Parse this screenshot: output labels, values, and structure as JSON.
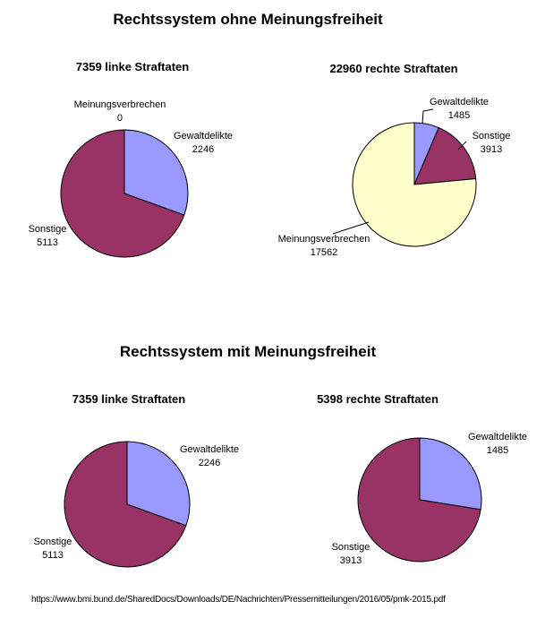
{
  "page": {
    "background": "#FFFFFF",
    "source_url": "https://www.bmi.bund.de/SharedDocs/Downloads/DE/Nachrichten/Pressemitteilungen/2016/05/pmk-2015.pdf"
  },
  "palette": {
    "gewaltdelikte": "#9999FF",
    "sonstige": "#993366",
    "meinungsverbrechen": "#FFFFCC",
    "outline": "#000000",
    "text": "#000000"
  },
  "sections": [
    {
      "title": "Rechtssystem ohne Meinungsfreiheit"
    },
    {
      "title": "Rechtssystem mit Meinungsfreiheit"
    }
  ],
  "chart_data": [
    {
      "type": "pie",
      "section": "Rechtssystem ohne Meinungsfreiheit",
      "title": "7359 linke Straftaten",
      "total": 7359,
      "start_angle_deg": 0,
      "direction": "clockwise",
      "slices": [
        {
          "label": "Meinungsverbrechen",
          "value": 0,
          "color": "#FFFFCC"
        },
        {
          "label": "Gewaltdelikte",
          "value": 2246,
          "color": "#9999FF"
        },
        {
          "label": "Sonstige",
          "value": 5113,
          "color": "#993366"
        }
      ]
    },
    {
      "type": "pie",
      "section": "Rechtssystem ohne Meinungsfreiheit",
      "title": "22960 rechte Straftaten",
      "total": 22960,
      "start_angle_deg": 0,
      "direction": "clockwise",
      "slices": [
        {
          "label": "Gewaltdelikte",
          "value": 1485,
          "color": "#9999FF"
        },
        {
          "label": "Sonstige",
          "value": 3913,
          "color": "#993366"
        },
        {
          "label": "Meinungsverbrechen",
          "value": 17562,
          "color": "#FFFFCC"
        }
      ]
    },
    {
      "type": "pie",
      "section": "Rechtssystem mit Meinungsfreiheit",
      "title": "7359 linke Straftaten",
      "total": 7359,
      "start_angle_deg": 0,
      "direction": "clockwise",
      "slices": [
        {
          "label": "Gewaltdelikte",
          "value": 2246,
          "color": "#9999FF"
        },
        {
          "label": "Sonstige",
          "value": 5113,
          "color": "#993366"
        }
      ]
    },
    {
      "type": "pie",
      "section": "Rechtssystem mit Meinungsfreiheit",
      "title": "5398 rechte Straftaten",
      "total": 5398,
      "start_angle_deg": 0,
      "direction": "clockwise",
      "slices": [
        {
          "label": "Gewaltdelikte",
          "value": 1485,
          "color": "#9999FF"
        },
        {
          "label": "Sonstige",
          "value": 3913,
          "color": "#993366"
        }
      ]
    }
  ]
}
